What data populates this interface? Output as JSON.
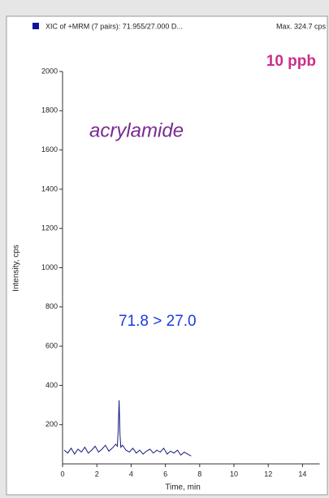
{
  "chart_data": {
    "type": "line",
    "title": "XIC of +MRM (7 pairs): 71.955/27.000 D...",
    "subtitle": "Max. 324.7 cps",
    "annotations": [
      "10 ppb",
      "acrylamide",
      "71.8 > 27.0"
    ],
    "x_label": "Time, min",
    "y_label": "Intensity, cps",
    "x": [
      0.1,
      0.3,
      0.5,
      0.7,
      0.9,
      1.1,
      1.3,
      1.5,
      1.7,
      1.9,
      2.1,
      2.3,
      2.5,
      2.7,
      2.9,
      3.1,
      3.2,
      3.25,
      3.3,
      3.35,
      3.4,
      3.5,
      3.7,
      3.9,
      4.1,
      4.3,
      4.5,
      4.7,
      4.9,
      5.1,
      5.3,
      5.5,
      5.7,
      5.9,
      6.1,
      6.3,
      6.5,
      6.7,
      6.9,
      7.1,
      7.3,
      7.5
    ],
    "series": [
      {
        "color": "#1a1a80",
        "values": [
          70,
          55,
          80,
          50,
          75,
          60,
          85,
          55,
          70,
          90,
          60,
          75,
          95,
          65,
          80,
          100,
          90,
          180,
          324.7,
          150,
          85,
          95,
          70,
          60,
          80,
          55,
          70,
          50,
          65,
          75,
          55,
          70,
          60,
          80,
          50,
          65,
          55,
          70,
          45,
          60,
          50,
          40
        ]
      }
    ],
    "xlim": [
      0,
      15
    ],
    "ylim": [
      0,
      2000
    ],
    "xticks": [
      0,
      2,
      4,
      6,
      8,
      10,
      12,
      14
    ],
    "yticks": [
      200,
      400,
      600,
      800,
      1000,
      1200,
      1400,
      1600,
      1800,
      2000
    ]
  }
}
